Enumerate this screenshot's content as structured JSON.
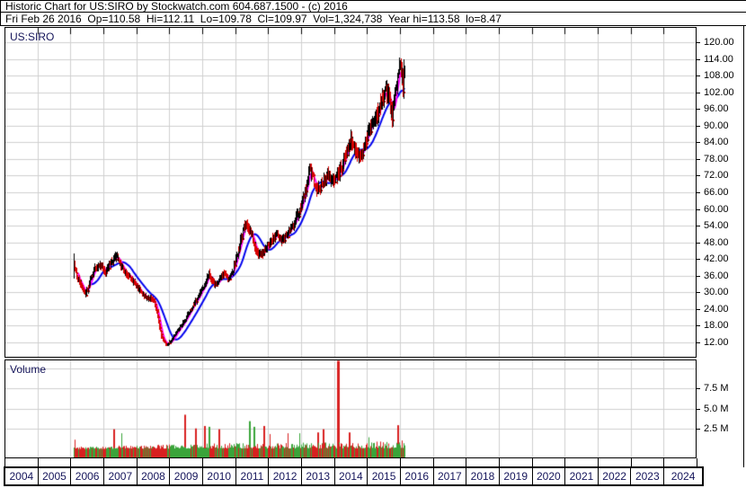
{
  "header": {
    "line1": "Historic Chart for US:SIRO by Stockwatch.com 604.687.1500 - (c) 2016",
    "line2": "Fri Feb 26 2016  Op=110.58  Hi=112.11  Lo=109.78  Cl=109.97  Vol=1,324,738  Year hi=113.58  lo=8.47"
  },
  "price_panel": {
    "symbol_label": "US:SIRO"
  },
  "volume_panel": {
    "label": "Volume"
  },
  "chart_data": {
    "type": "ohlc-weekly-with-volume",
    "title": "US:SIRO",
    "x_axis": {
      "start_year": 2004,
      "end_year": 2024,
      "years": [
        "2004",
        "2005",
        "2006",
        "2007",
        "2008",
        "2009",
        "2010",
        "2011",
        "2012",
        "2013",
        "2014",
        "2015",
        "2016",
        "2017",
        "2018",
        "2019",
        "2020",
        "2021",
        "2022",
        "2023",
        "2024"
      ]
    },
    "price_axis": {
      "min": 12,
      "max": 120,
      "step": 6,
      "ticks": [
        "120.00",
        "114.00",
        "108.00",
        "102.00",
        "96.00",
        "90.00",
        "84.00",
        "78.00",
        "72.00",
        "66.00",
        "60.00",
        "54.00",
        "48.00",
        "42.00",
        "36.00",
        "30.00",
        "24.00",
        "18.00",
        "12.00"
      ]
    },
    "volume_axis": {
      "unit": "millions",
      "step": 2.5,
      "ticks": [
        "7.5 M",
        "5.0 M",
        "2.5 M"
      ],
      "tick_values": [
        7.5,
        5.0,
        2.5
      ]
    },
    "data_start": 2006.1,
    "data_end": 2016.14,
    "last_trade": {
      "date": "Fri Feb 26 2016",
      "open": 110.58,
      "high": 112.11,
      "low": 109.78,
      "close": 109.97,
      "volume": 1324738,
      "year_high": 113.58,
      "year_low": 8.47
    },
    "price_anchors": [
      [
        2006.1,
        40
      ],
      [
        2006.18,
        36
      ],
      [
        2006.3,
        33
      ],
      [
        2006.45,
        29.5
      ],
      [
        2006.6,
        35
      ],
      [
        2006.75,
        39
      ],
      [
        2006.9,
        40
      ],
      [
        2007.05,
        37.5
      ],
      [
        2007.25,
        41.5
      ],
      [
        2007.4,
        43
      ],
      [
        2007.55,
        39
      ],
      [
        2007.7,
        36.5
      ],
      [
        2007.9,
        34
      ],
      [
        2008.1,
        30.5
      ],
      [
        2008.3,
        28
      ],
      [
        2008.5,
        27.5
      ],
      [
        2008.62,
        23
      ],
      [
        2008.75,
        14
      ],
      [
        2008.9,
        11.2
      ],
      [
        2009.05,
        12.5
      ],
      [
        2009.25,
        16.5
      ],
      [
        2009.45,
        19.5
      ],
      [
        2009.65,
        24
      ],
      [
        2009.85,
        28
      ],
      [
        2010.05,
        32
      ],
      [
        2010.2,
        37
      ],
      [
        2010.35,
        32.5
      ],
      [
        2010.5,
        34.5
      ],
      [
        2010.65,
        37
      ],
      [
        2010.8,
        35
      ],
      [
        2010.95,
        39
      ],
      [
        2011.1,
        46
      ],
      [
        2011.25,
        53
      ],
      [
        2011.35,
        55
      ],
      [
        2011.5,
        50
      ],
      [
        2011.65,
        44
      ],
      [
        2011.8,
        43.5
      ],
      [
        2011.95,
        46
      ],
      [
        2012.1,
        48.5
      ],
      [
        2012.25,
        51
      ],
      [
        2012.4,
        48.5
      ],
      [
        2012.55,
        50.5
      ],
      [
        2012.7,
        53.5
      ],
      [
        2012.85,
        57
      ],
      [
        2013.0,
        61
      ],
      [
        2013.15,
        68
      ],
      [
        2013.25,
        75
      ],
      [
        2013.38,
        70
      ],
      [
        2013.5,
        66.5
      ],
      [
        2013.65,
        69.5
      ],
      [
        2013.8,
        72
      ],
      [
        2013.95,
        70.5
      ],
      [
        2014.1,
        72
      ],
      [
        2014.25,
        76
      ],
      [
        2014.4,
        82
      ],
      [
        2014.5,
        84.5
      ],
      [
        2014.65,
        80.5
      ],
      [
        2014.8,
        79
      ],
      [
        2014.95,
        85
      ],
      [
        2015.1,
        89.5
      ],
      [
        2015.25,
        93
      ],
      [
        2015.4,
        97
      ],
      [
        2015.55,
        103.5
      ],
      [
        2015.65,
        100
      ],
      [
        2015.75,
        93.5
      ],
      [
        2015.85,
        101
      ],
      [
        2015.95,
        107.5
      ],
      [
        2016.02,
        111.5
      ],
      [
        2016.08,
        104
      ],
      [
        2016.13,
        110
      ]
    ],
    "first_bar": {
      "high": 44,
      "low": 35
    },
    "moving_averages": {
      "fast_weeks": 8,
      "slow_weeks": 26
    },
    "volume_base_anchors": [
      [
        2006.1,
        0.18
      ],
      [
        2007.0,
        0.25
      ],
      [
        2008.0,
        0.3
      ],
      [
        2009.0,
        0.35
      ],
      [
        2010.0,
        0.42
      ],
      [
        2011.0,
        0.45
      ],
      [
        2012.0,
        0.42
      ],
      [
        2013.0,
        0.48
      ],
      [
        2014.0,
        0.5
      ],
      [
        2015.0,
        0.55
      ],
      [
        2016.14,
        0.6
      ]
    ],
    "volume_spikes": [
      [
        2006.12,
        1.2,
        "red"
      ],
      [
        2007.3,
        2.5,
        "red"
      ],
      [
        2007.55,
        2.0,
        "green"
      ],
      [
        2009.45,
        4.3,
        "red"
      ],
      [
        2009.8,
        2.6,
        "red"
      ],
      [
        2010.05,
        2.9,
        "red"
      ],
      [
        2010.2,
        2.8,
        "green"
      ],
      [
        2010.5,
        2.5,
        "red"
      ],
      [
        2011.4,
        3.5,
        "green"
      ],
      [
        2011.55,
        2.8,
        "green"
      ],
      [
        2011.85,
        2.9,
        "red"
      ],
      [
        2012.05,
        1.9,
        "red"
      ],
      [
        2012.6,
        2.0,
        "red"
      ],
      [
        2012.95,
        2.0,
        "green"
      ],
      [
        2013.5,
        2.1,
        "red"
      ],
      [
        2013.65,
        2.5,
        "red"
      ],
      [
        2014.1,
        11.0,
        "red"
      ],
      [
        2014.45,
        2.1,
        "red"
      ],
      [
        2015.05,
        1.5,
        "green"
      ],
      [
        2015.9,
        3.0,
        "red"
      ],
      [
        2016.05,
        1.1,
        "red"
      ]
    ],
    "colors": {
      "up_bar": "#000000",
      "down_bar": "#d80000",
      "ma_fast": "#ff00ff",
      "ma_slow": "#0000ee",
      "vol_up": "#3aa43a",
      "vol_down": "#d82020",
      "grid": "#cfcfcf",
      "axis_text": "#000000",
      "year_text": "#14145a",
      "symbol_text": "#14145a"
    }
  }
}
